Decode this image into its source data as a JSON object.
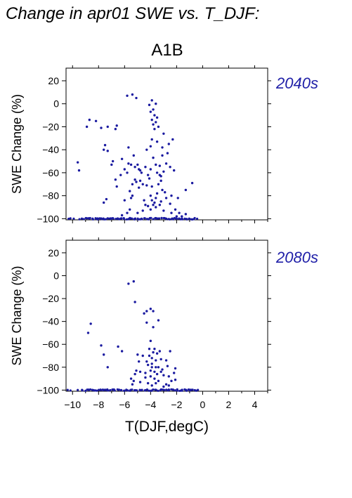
{
  "title": "Change in apr01 SWE vs. T_DJF:",
  "scenario": "A1B",
  "colors": {
    "points": "#1a1aa0",
    "period_label": "#2020a8",
    "axes": "#000000"
  },
  "chart_data": [
    {
      "type": "scatter",
      "period_label": "2040s",
      "xlabel": "T(DJF,degC)",
      "ylabel": "SWE Change (%)",
      "xlim": [
        -10.5,
        5
      ],
      "ylim": [
        -101,
        31
      ],
      "x_ticks": [
        -10,
        -8,
        -6,
        -4,
        -2,
        0,
        2,
        4
      ],
      "y_ticks": [
        20,
        0,
        -20,
        -40,
        -60,
        -80,
        -100
      ],
      "points": [
        [
          -5.8,
          7
        ],
        [
          -5.4,
          8
        ],
        [
          -5.1,
          5
        ],
        [
          -3.9,
          3
        ],
        [
          -4.1,
          -1
        ],
        [
          -3.6,
          0
        ],
        [
          -3.8,
          -5
        ],
        [
          -4.0,
          -7
        ],
        [
          -3.7,
          -10
        ],
        [
          -3.5,
          -12
        ],
        [
          -3.9,
          -14
        ],
        [
          -3.6,
          -16
        ],
        [
          -3.8,
          -18
        ],
        [
          -3.4,
          -20
        ],
        [
          -3.7,
          -22
        ],
        [
          -8.7,
          -14
        ],
        [
          -8.2,
          -15
        ],
        [
          -8.9,
          -20
        ],
        [
          -7.8,
          -21
        ],
        [
          -7.3,
          -20
        ],
        [
          -6.6,
          -19
        ],
        [
          -6.7,
          -22
        ],
        [
          -3.0,
          -26
        ],
        [
          -2.3,
          -31
        ],
        [
          -2.6,
          -35
        ],
        [
          -4.0,
          -37
        ],
        [
          -5.7,
          -38
        ],
        [
          -7.5,
          -36
        ],
        [
          -7.6,
          -40
        ],
        [
          -7.3,
          -41
        ],
        [
          -4.3,
          -40
        ],
        [
          -2.7,
          -43
        ],
        [
          -3.1,
          -45
        ],
        [
          -3.8,
          -47
        ],
        [
          -5.3,
          -45
        ],
        [
          -6.2,
          -48
        ],
        [
          -6.9,
          -50
        ],
        [
          -7.0,
          -53
        ],
        [
          -9.6,
          -51
        ],
        [
          -9.5,
          -58
        ],
        [
          -5.5,
          -53
        ],
        [
          -5.2,
          -55
        ],
        [
          -5.0,
          -53
        ],
        [
          -4.9,
          -57
        ],
        [
          -4.4,
          -55
        ],
        [
          -3.6,
          -53
        ],
        [
          -3.3,
          -54
        ],
        [
          -2.8,
          -52
        ],
        [
          -2.5,
          -55
        ],
        [
          -4.7,
          -60
        ],
        [
          -4.2,
          -62
        ],
        [
          -3.5,
          -60
        ],
        [
          -3.2,
          -63
        ],
        [
          -2.2,
          -58
        ],
        [
          -4.1,
          -65
        ],
        [
          -5.8,
          -60
        ],
        [
          -6.3,
          -62
        ],
        [
          -4.8,
          -67
        ],
        [
          -5.1,
          -68
        ],
        [
          -5.4,
          -70
        ],
        [
          -4.6,
          -70
        ],
        [
          -4.3,
          -71
        ],
        [
          -3.9,
          -72
        ],
        [
          -3.4,
          -70
        ],
        [
          -6.7,
          -66
        ],
        [
          -6.6,
          -72
        ],
        [
          -4.9,
          -73
        ],
        [
          -3.1,
          -75
        ],
        [
          -2.9,
          -77
        ],
        [
          -3.5,
          -78
        ],
        [
          -4.0,
          -80
        ],
        [
          -3.6,
          -82
        ],
        [
          -3.9,
          -84
        ],
        [
          -3.7,
          -86
        ],
        [
          -3.8,
          -88
        ],
        [
          -3.6,
          -90
        ],
        [
          -4.0,
          -92
        ],
        [
          -4.2,
          -89
        ],
        [
          -3.3,
          -88
        ],
        [
          -3.2,
          -85
        ],
        [
          -2.8,
          -82
        ],
        [
          -2.4,
          -80
        ],
        [
          -2.5,
          -87
        ],
        [
          -5.6,
          -76
        ],
        [
          -5.4,
          -80
        ],
        [
          -5.5,
          -82
        ],
        [
          -6.0,
          -84
        ],
        [
          -7.4,
          -83
        ],
        [
          -7.6,
          -86
        ],
        [
          -1.9,
          -82
        ],
        [
          -0.8,
          -69
        ],
        [
          -1.3,
          -75
        ],
        [
          -3.0,
          -93
        ],
        [
          -2.4,
          -95
        ],
        [
          -1.8,
          -95
        ],
        [
          -1.3,
          -96
        ],
        [
          -4.6,
          -93
        ],
        [
          -5.0,
          -95
        ],
        [
          -2.0,
          -98
        ],
        [
          -1.6,
          -98
        ],
        [
          -2.1,
          -92
        ],
        [
          -4.4,
          -88
        ],
        [
          -4.5,
          -84
        ],
        [
          -3.2,
          -67
        ],
        [
          -3.3,
          -62
        ],
        [
          -3.0,
          -59
        ],
        [
          -4.8,
          -58
        ],
        [
          -6.0,
          -57
        ],
        [
          -5.7,
          -52
        ],
        [
          -5.6,
          -92
        ],
        [
          -5.8,
          -95
        ],
        [
          -6.2,
          -97
        ],
        [
          -3.9,
          -31
        ],
        [
          -3.5,
          -33
        ],
        [
          -3.1,
          -38
        ],
        [
          -5.2,
          -66
        ],
        [
          -4.0,
          -57
        ]
      ],
      "floor_points_x": [
        -10.3,
        -10.1,
        -9.9,
        -9.4,
        -9.3,
        -9.1,
        -9.0,
        -8.9,
        -8.8,
        -8.7,
        -8.6,
        -8.5,
        -8.4,
        -8.3,
        -8.2,
        -8.1,
        -8.0,
        -7.9,
        -7.8,
        -7.7,
        -7.6,
        -7.5,
        -7.4,
        -7.3,
        -7.2,
        -7.1,
        -7.0,
        -6.9,
        -6.8,
        -6.7,
        -6.6,
        -6.5,
        -6.4,
        -6.3,
        -6.2,
        -6.1,
        -6.0,
        -5.9,
        -5.8,
        -5.7,
        -5.6,
        -5.5,
        -5.4,
        -5.3,
        -5.2,
        -5.1,
        -5.0,
        -4.9,
        -4.8,
        -4.7,
        -4.6,
        -4.5,
        -4.4,
        -4.3,
        -4.2,
        -4.1,
        -4.0,
        -3.9,
        -3.8,
        -3.7,
        -3.6,
        -3.5,
        -3.4,
        -3.3,
        -3.2,
        -3.1,
        -3.0,
        -2.9,
        -2.8,
        -2.7,
        -2.6,
        -2.5,
        -2.4,
        -2.3,
        -2.2,
        -2.1,
        -2.0,
        -1.9,
        -1.8,
        -1.7,
        -1.6,
        -1.5,
        -1.4,
        -1.3,
        -1.2,
        -1.1,
        -1.0,
        -0.9,
        -0.8,
        -0.7,
        -0.6,
        -0.5
      ]
    },
    {
      "type": "scatter",
      "period_label": "2080s",
      "xlabel": "T(DJF,degC)",
      "ylabel": "SWE Change (%)",
      "xlim": [
        -10.5,
        5
      ],
      "ylim": [
        -101,
        31
      ],
      "x_ticks": [
        -10,
        -8,
        -6,
        -4,
        -2,
        0,
        2,
        4
      ],
      "x_tick_labels": [
        "−10",
        "−8",
        "−6",
        "−4",
        "−2",
        "0",
        "2",
        "4"
      ],
      "y_ticks": [
        20,
        0,
        -20,
        -40,
        -60,
        -80,
        -100
      ],
      "points": [
        [
          -5.3,
          -5
        ],
        [
          -5.7,
          -7
        ],
        [
          -4.0,
          -29
        ],
        [
          -3.8,
          -31
        ],
        [
          -4.3,
          -31
        ],
        [
          -5.2,
          -23
        ],
        [
          -4.5,
          -33
        ],
        [
          -3.4,
          -39
        ],
        [
          -4.3,
          -41
        ],
        [
          -3.8,
          -45
        ],
        [
          -8.6,
          -42
        ],
        [
          -8.8,
          -50
        ],
        [
          -7.8,
          -61
        ],
        [
          -6.5,
          -62
        ],
        [
          -6.2,
          -66
        ],
        [
          -7.6,
          -69
        ],
        [
          -7.3,
          -80
        ],
        [
          -4.0,
          -57
        ],
        [
          -4.1,
          -64
        ],
        [
          -3.7,
          -64
        ],
        [
          -3.8,
          -67
        ],
        [
          -3.5,
          -68
        ],
        [
          -3.3,
          -66
        ],
        [
          -2.5,
          -66
        ],
        [
          -4.1,
          -70
        ],
        [
          -3.9,
          -72
        ],
        [
          -3.6,
          -74
        ],
        [
          -3.2,
          -73
        ],
        [
          -2.8,
          -74
        ],
        [
          -4.3,
          -75
        ],
        [
          -4.6,
          -70
        ],
        [
          -5.0,
          -69
        ],
        [
          -4.9,
          -75
        ],
        [
          -4.2,
          -78
        ],
        [
          -3.9,
          -80
        ],
        [
          -3.4,
          -80
        ],
        [
          -3.1,
          -82
        ],
        [
          -2.7,
          -79
        ],
        [
          -2.1,
          -81
        ],
        [
          -2.2,
          -85
        ],
        [
          -5.1,
          -83
        ],
        [
          -4.8,
          -84
        ],
        [
          -4.4,
          -85
        ],
        [
          -4.0,
          -83
        ],
        [
          -3.7,
          -84
        ],
        [
          -3.5,
          -86
        ],
        [
          -3.2,
          -84
        ],
        [
          -3.0,
          -87
        ],
        [
          -2.6,
          -88
        ],
        [
          -4.0,
          -88
        ],
        [
          -4.4,
          -89
        ],
        [
          -3.7,
          -90
        ],
        [
          -3.4,
          -92
        ],
        [
          -2.4,
          -92
        ],
        [
          -2.1,
          -91
        ],
        [
          -4.8,
          -93
        ],
        [
          -4.2,
          -94
        ],
        [
          -3.6,
          -94
        ],
        [
          -2.8,
          -95
        ],
        [
          -5.4,
          -95
        ],
        [
          -5.3,
          -92
        ],
        [
          -3.9,
          -96
        ],
        [
          -3.0,
          -97
        ],
        [
          -2.6,
          -96
        ],
        [
          -3.6,
          -80
        ],
        [
          -5.2,
          -86
        ],
        [
          -5.5,
          -90
        ],
        [
          -3.9,
          -77
        ]
      ],
      "floor_points_x": [
        -10.4,
        -10.2,
        -9.6,
        -9.3,
        -9.2,
        -9.0,
        -8.9,
        -8.8,
        -8.7,
        -8.6,
        -8.5,
        -8.4,
        -8.3,
        -8.2,
        -8.1,
        -8.0,
        -7.9,
        -7.8,
        -7.7,
        -7.6,
        -7.5,
        -7.4,
        -7.3,
        -7.2,
        -7.1,
        -7.0,
        -6.9,
        -6.8,
        -6.7,
        -6.6,
        -6.5,
        -6.4,
        -6.3,
        -6.2,
        -6.1,
        -6.0,
        -5.9,
        -5.8,
        -5.7,
        -5.6,
        -5.5,
        -5.4,
        -5.3,
        -5.2,
        -5.1,
        -5.0,
        -4.9,
        -4.8,
        -4.7,
        -4.6,
        -4.5,
        -4.4,
        -4.3,
        -4.2,
        -4.1,
        -4.0,
        -3.9,
        -3.8,
        -3.7,
        -3.6,
        -3.5,
        -3.4,
        -3.3,
        -3.2,
        -3.1,
        -3.0,
        -2.9,
        -2.8,
        -2.7,
        -2.6,
        -2.5,
        -2.4,
        -2.3,
        -2.2,
        -2.1,
        -2.0,
        -1.9,
        -1.8,
        -1.7,
        -1.6,
        -1.5,
        -1.4,
        -1.3,
        -1.2,
        -1.1,
        -1.0,
        -0.9,
        -0.8,
        -0.7,
        -0.6,
        -0.5,
        -0.3
      ]
    }
  ]
}
